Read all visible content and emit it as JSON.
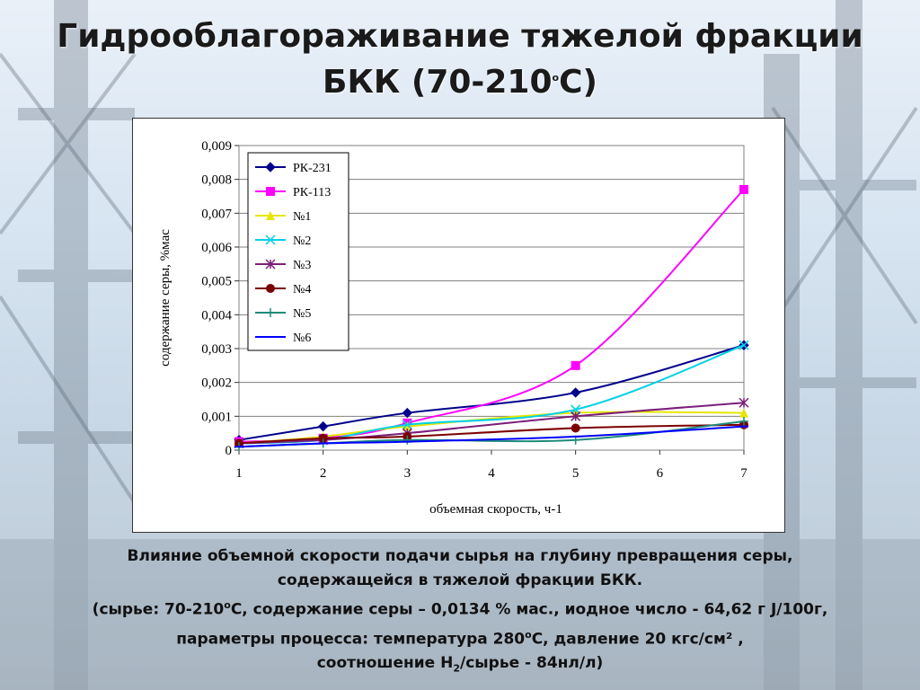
{
  "title": {
    "line1": "Гидрооблагораживание тяжелой фракции",
    "line2": "БКК (70-210",
    "line2_sup": "о",
    "line2_end": "С)"
  },
  "caption": {
    "line1": "Влияние  объемной скорости подачи сырья на  глубину превращения серы,",
    "line2": "содержащейся в тяжелой фракции БКК.",
    "line3a": "(сырье: 70-210",
    "line3sup": "о",
    "line3b": "С, содержание серы – 0,0134 % мас.,  иодное число  - 64,62 г J/100г,",
    "line4a": "параметры процесса: температура 280",
    "line4sup": "о",
    "line4b": "С, давление 20 кгс/см² ,",
    "line5a": "соотношение H",
    "line5sub": "2",
    "line5b": "/сырье - 84нл/л)"
  },
  "chart_data": {
    "type": "line",
    "xlabel": "объемная скорость, ч-1",
    "ylabel": "содержание серы, %мас",
    "xlim": [
      1,
      7
    ],
    "ylim": [
      0,
      0.009
    ],
    "xticks": [
      "1",
      "2",
      "3",
      "4",
      "5",
      "6",
      "7"
    ],
    "yticks": [
      "0",
      "0,001",
      "0,002",
      "0,003",
      "0,004",
      "0,005",
      "0,006",
      "0,007",
      "0,008",
      "0,009"
    ],
    "grid": "horizontal",
    "legend": "top-left",
    "series": [
      {
        "name": "РК-231",
        "color": "#00008b",
        "marker": "diamond",
        "x": [
          1,
          2,
          3,
          5,
          7
        ],
        "values": [
          0.0003,
          0.0007,
          0.0011,
          0.0017,
          0.0031
        ]
      },
      {
        "name": "РК-113",
        "color": "#ff00ff",
        "marker": "square",
        "x": [
          1,
          2,
          3,
          5,
          7
        ],
        "values": [
          0.00025,
          0.00035,
          0.0008,
          0.0025,
          0.0077
        ]
      },
      {
        "name": "№1",
        "color": "#e6e600",
        "marker": "triangle",
        "x": [
          1,
          2,
          3,
          5,
          7
        ],
        "values": [
          0.0002,
          0.0004,
          0.0007,
          0.0011,
          0.0011
        ]
      },
      {
        "name": "№2",
        "color": "#00d0e8",
        "marker": "x",
        "x": [
          1,
          2,
          3,
          5,
          7
        ],
        "values": [
          0.0002,
          0.0003,
          0.00075,
          0.0012,
          0.0031
        ]
      },
      {
        "name": "№3",
        "color": "#7b1f7b",
        "marker": "star",
        "x": [
          1,
          2,
          3,
          5,
          7
        ],
        "values": [
          0.0002,
          0.0003,
          0.0005,
          0.001,
          0.0014
        ]
      },
      {
        "name": "№4",
        "color": "#7b0000",
        "marker": "circle",
        "x": [
          1,
          2,
          3,
          5,
          7
        ],
        "values": [
          0.0002,
          0.00035,
          0.0004,
          0.00065,
          0.00075
        ]
      },
      {
        "name": "№5",
        "color": "#1f8a7a",
        "marker": "plus",
        "x": [
          1,
          2,
          3,
          5,
          7
        ],
        "values": [
          0.0001,
          0.0002,
          0.0003,
          0.0003,
          0.00085
        ]
      },
      {
        "name": "№6",
        "color": "#0000ff",
        "marker": "dash",
        "x": [
          1,
          2,
          3,
          5,
          7
        ],
        "values": [
          0.0001,
          0.0002,
          0.00025,
          0.0004,
          0.0007
        ]
      }
    ]
  }
}
